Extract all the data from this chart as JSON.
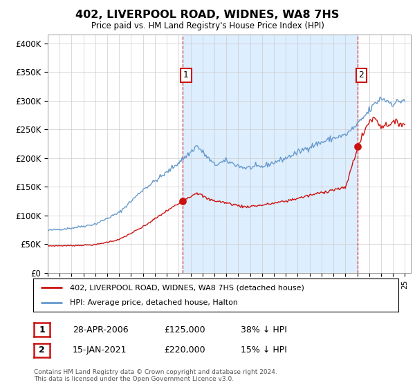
{
  "title": "402, LIVERPOOL ROAD, WIDNES, WA8 7HS",
  "subtitle": "Price paid vs. HM Land Registry's House Price Index (HPI)",
  "ytick_labels": [
    "£0",
    "£50K",
    "£100K",
    "£150K",
    "£200K",
    "£250K",
    "£300K",
    "£350K",
    "£400K"
  ],
  "yticks": [
    0,
    50000,
    100000,
    150000,
    200000,
    250000,
    300000,
    350000,
    400000
  ],
  "ylim": [
    0,
    415000
  ],
  "xlim_start": 1995.0,
  "xlim_end": 2025.5,
  "hpi_color": "#6699cc",
  "hpi_fill_color": "#ddeeff",
  "price_color": "#cc1111",
  "marker1_date": 2006.32,
  "marker1_price": 125000,
  "marker1_label": "1",
  "marker2_date": 2021.04,
  "marker2_price": 220000,
  "marker2_label": "2",
  "legend_line1": "402, LIVERPOOL ROAD, WIDNES, WA8 7HS (detached house)",
  "legend_line2": "HPI: Average price, detached house, Halton",
  "footer": "Contains HM Land Registry data © Crown copyright and database right 2024.\nThis data is licensed under the Open Government Licence v3.0.",
  "background_color": "#ffffff",
  "grid_color": "#cccccc",
  "chart_bg": "#f0f4fa"
}
